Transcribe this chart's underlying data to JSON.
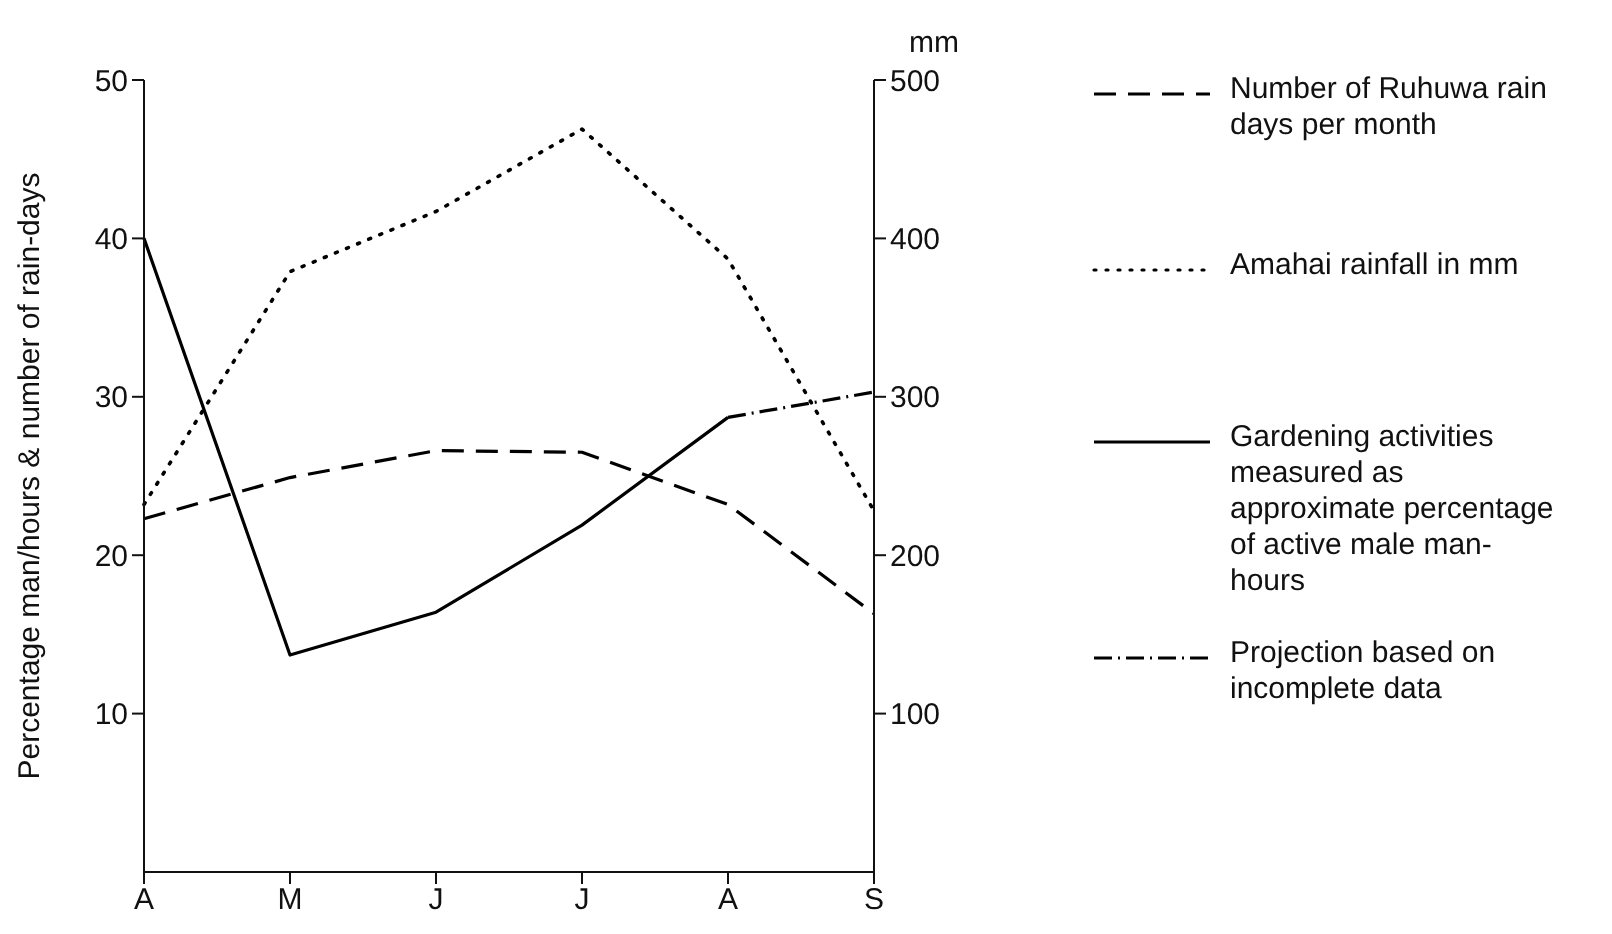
{
  "chart_data": {
    "type": "line",
    "categories": [
      "A",
      "M",
      "J",
      "J",
      "A",
      "S"
    ],
    "ylabel": "Percentage man/hours & number of rain-days",
    "y2label": "mm",
    "ylim": [
      0,
      50
    ],
    "yticks": [
      10,
      20,
      30,
      40,
      50
    ],
    "y2lim": [
      0,
      500
    ],
    "y2ticks": [
      100,
      200,
      300,
      400,
      500
    ],
    "legend": "right",
    "grid": false,
    "marker": "none",
    "series": [
      {
        "name": "Number of Ruhuwa rain days per month",
        "color": "#000000",
        "line_style": "dashed",
        "values": [
          22.3,
          24.9,
          26.6,
          26.5,
          23.2,
          16.3
        ]
      },
      {
        "name": "Amahai rainfall in mm",
        "color": "#000000",
        "line_style": "dotted",
        "axis": "y2",
        "values": [
          232,
          379,
          417,
          469,
          387,
          228
        ]
      },
      {
        "name": "Gardening activities measured as approximate percentage of active male man-hours",
        "color": "#000000",
        "line_style": "solid",
        "values": [
          40.0,
          13.7,
          16.4,
          21.9,
          28.7,
          null
        ]
      },
      {
        "name": "Projection based on incomplete data",
        "color": "#000000",
        "line_style": "dashdot",
        "values": [
          null,
          null,
          null,
          null,
          28.7,
          30.3
        ]
      }
    ]
  }
}
